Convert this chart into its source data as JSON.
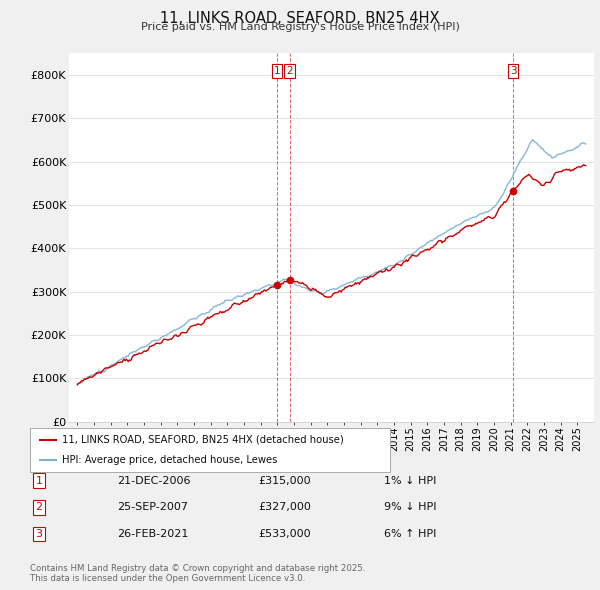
{
  "title": "11, LINKS ROAD, SEAFORD, BN25 4HX",
  "subtitle": "Price paid vs. HM Land Registry's House Price Index (HPI)",
  "red_line_label": "11, LINKS ROAD, SEAFORD, BN25 4HX (detached house)",
  "blue_line_label": "HPI: Average price, detached house, Lewes",
  "transactions": [
    {
      "num": 1,
      "date": "21-DEC-2006",
      "price": 315000,
      "pct": "1%",
      "dir": "↓",
      "year_x": 2006.97
    },
    {
      "num": 2,
      "date": "25-SEP-2007",
      "price": 327000,
      "pct": "9%",
      "dir": "↓",
      "year_x": 2007.73
    },
    {
      "num": 3,
      "date": "26-FEB-2021",
      "price": 533000,
      "pct": "6%",
      "dir": "↑",
      "year_x": 2021.15
    }
  ],
  "footnote": "Contains HM Land Registry data © Crown copyright and database right 2025.\nThis data is licensed under the Open Government Licence v3.0.",
  "ylim": [
    0,
    850000
  ],
  "yticks": [
    0,
    100000,
    200000,
    300000,
    400000,
    500000,
    600000,
    700000,
    800000
  ],
  "ytick_labels": [
    "£0",
    "£100K",
    "£200K",
    "£300K",
    "£400K",
    "£500K",
    "£600K",
    "£700K",
    "£800K"
  ],
  "background_color": "#f0f0f0",
  "plot_bg_color": "#ffffff",
  "red_color": "#cc0000",
  "blue_color": "#7ab0d4",
  "vline_color": "#cc0000",
  "xlim_left": 1994.5,
  "xlim_right": 2026.0,
  "xticks_start": 1995,
  "xticks_end": 2026
}
